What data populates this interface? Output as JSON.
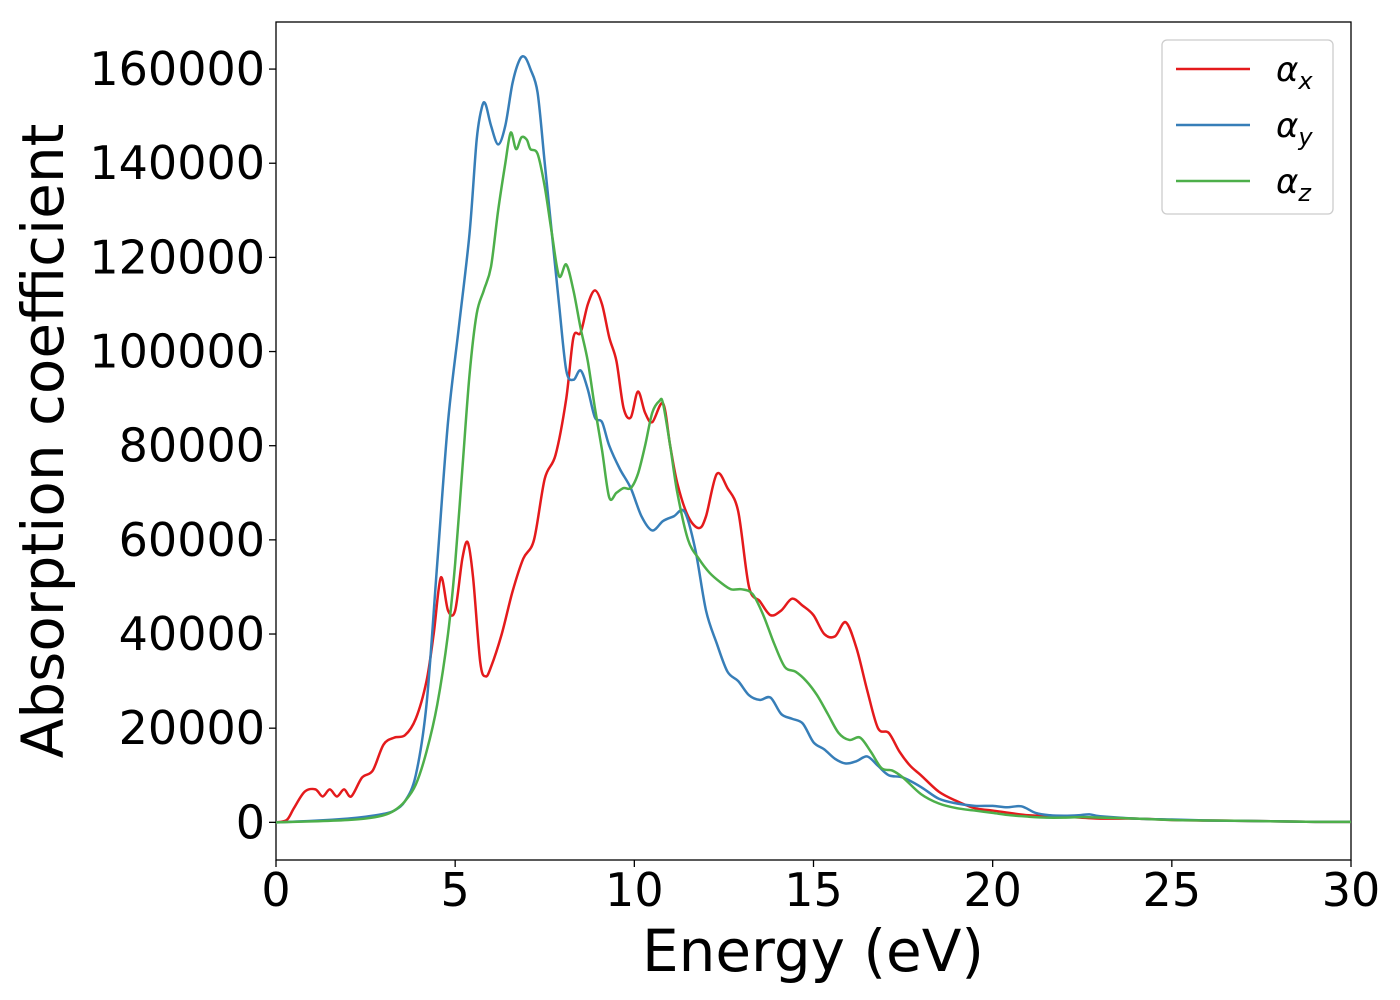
{
  "chart_data": {
    "type": "line",
    "title": "",
    "xlabel": "Energy (eV)",
    "ylabel": "Absorption coefficient",
    "xlim": [
      0,
      30
    ],
    "ylim": [
      -8000,
      170000
    ],
    "xticks": [
      0,
      5,
      10,
      15,
      20,
      25,
      30
    ],
    "yticks": [
      0,
      20000,
      40000,
      60000,
      80000,
      100000,
      120000,
      140000,
      160000
    ],
    "grid": false,
    "legend_position": "top-right",
    "series": [
      {
        "name": "α_x",
        "symbol": "α",
        "sub": "x",
        "color": "#e41a1c",
        "x": [
          0,
          0.3,
          0.5,
          0.8,
          1.1,
          1.3,
          1.5,
          1.7,
          1.9,
          2.1,
          2.4,
          2.7,
          3.0,
          3.3,
          3.6,
          3.9,
          4.2,
          4.4,
          4.6,
          4.8,
          5.0,
          5.2,
          5.35,
          5.5,
          5.7,
          5.85,
          6.0,
          6.3,
          6.6,
          6.9,
          7.2,
          7.5,
          7.8,
          8.1,
          8.3,
          8.5,
          8.7,
          8.9,
          9.1,
          9.3,
          9.5,
          9.7,
          9.9,
          10.1,
          10.3,
          10.5,
          10.8,
          11.0,
          11.2,
          11.5,
          11.8,
          12.0,
          12.3,
          12.6,
          12.9,
          13.2,
          13.5,
          13.8,
          14.1,
          14.4,
          14.7,
          15.0,
          15.3,
          15.6,
          15.9,
          16.2,
          16.5,
          16.8,
          17.1,
          17.4,
          17.7,
          18.0,
          18.5,
          19.0,
          19.5,
          20.0,
          21.0,
          22.0,
          23.0,
          24.0,
          25.0,
          26.0,
          27.0,
          28.0,
          29.0,
          30.0
        ],
        "y": [
          0,
          500,
          3000,
          6500,
          7000,
          5500,
          7000,
          5500,
          7000,
          5500,
          9500,
          11000,
          16500,
          18000,
          18500,
          22000,
          30000,
          40000,
          52000,
          45000,
          45000,
          56000,
          59500,
          52000,
          34000,
          31000,
          33000,
          40000,
          49000,
          56000,
          60000,
          73000,
          78000,
          90000,
          103000,
          104000,
          110000,
          113000,
          110000,
          103000,
          98000,
          88000,
          86000,
          91500,
          87000,
          85000,
          89000,
          80000,
          72000,
          65000,
          62500,
          65000,
          74000,
          71000,
          66000,
          50000,
          47000,
          44000,
          45000,
          47500,
          46000,
          44000,
          40000,
          39500,
          42500,
          37000,
          28000,
          20000,
          19000,
          15000,
          12000,
          10000,
          6500,
          4500,
          3000,
          2500,
          1500,
          1200,
          800,
          800,
          500,
          400,
          300,
          200,
          100,
          100
        ]
      },
      {
        "name": "α_y",
        "symbol": "α",
        "sub": "y",
        "color": "#377eb8",
        "x": [
          0,
          1.0,
          2.0,
          2.5,
          3.0,
          3.3,
          3.6,
          3.9,
          4.2,
          4.5,
          4.8,
          5.1,
          5.4,
          5.6,
          5.75,
          5.85,
          6.0,
          6.2,
          6.4,
          6.6,
          6.8,
          6.95,
          7.1,
          7.3,
          7.5,
          7.7,
          7.9,
          8.1,
          8.3,
          8.5,
          8.7,
          8.9,
          9.1,
          9.3,
          9.6,
          9.9,
          10.2,
          10.5,
          10.8,
          11.1,
          11.4,
          11.7,
          12.0,
          12.3,
          12.6,
          12.9,
          13.2,
          13.5,
          13.8,
          14.1,
          14.4,
          14.7,
          15.0,
          15.3,
          15.6,
          15.9,
          16.2,
          16.5,
          16.8,
          17.1,
          17.5,
          18.0,
          18.5,
          19.0,
          19.5,
          20.0,
          20.4,
          20.8,
          21.2,
          21.6,
          22.0,
          22.4,
          22.7,
          23.0,
          24.0,
          25.0,
          26.0,
          27.0,
          28.0,
          29.0,
          30.0
        ],
        "y": [
          0,
          300,
          800,
          1200,
          1800,
          2500,
          4500,
          10000,
          25000,
          55000,
          85000,
          105000,
          125000,
          145000,
          152000,
          152500,
          148000,
          144000,
          148000,
          157000,
          162000,
          162500,
          160000,
          155000,
          140000,
          125000,
          110000,
          96000,
          94000,
          96000,
          92000,
          86000,
          85000,
          80000,
          75000,
          71000,
          65000,
          62000,
          64000,
          65000,
          66000,
          58000,
          45000,
          38000,
          32000,
          30000,
          27000,
          26000,
          26500,
          23000,
          22000,
          21000,
          17000,
          15500,
          13500,
          12500,
          13000,
          14000,
          12000,
          10000,
          9500,
          7500,
          5000,
          4000,
          3500,
          3500,
          3200,
          3400,
          2000,
          1500,
          1400,
          1500,
          1700,
          1300,
          800,
          600,
          400,
          300,
          200,
          100,
          100
        ]
      },
      {
        "name": "α_z",
        "symbol": "α",
        "sub": "z",
        "color": "#4daf4a",
        "x": [
          0,
          1.0,
          2.0,
          2.5,
          3.0,
          3.3,
          3.6,
          3.9,
          4.2,
          4.5,
          4.8,
          5.0,
          5.2,
          5.4,
          5.6,
          5.8,
          6.0,
          6.2,
          6.4,
          6.55,
          6.7,
          6.85,
          7.0,
          7.1,
          7.3,
          7.5,
          7.7,
          7.9,
          8.1,
          8.3,
          8.5,
          8.7,
          8.9,
          9.1,
          9.3,
          9.5,
          9.7,
          9.9,
          10.1,
          10.3,
          10.5,
          10.7,
          10.8,
          11.0,
          11.2,
          11.5,
          11.8,
          12.1,
          12.4,
          12.7,
          13.0,
          13.3,
          13.6,
          13.9,
          14.2,
          14.5,
          14.8,
          15.1,
          15.4,
          15.7,
          16.0,
          16.3,
          16.6,
          16.9,
          17.2,
          17.5,
          18.0,
          18.5,
          19.0,
          19.5,
          20.0,
          20.5,
          21.0,
          21.5,
          22.0,
          22.5,
          23.0,
          24.0,
          25.0,
          26.0,
          27.0,
          28.0,
          29.0,
          30.0
        ],
        "y": [
          0,
          200,
          500,
          800,
          1500,
          2500,
          4500,
          8000,
          15000,
          25000,
          40000,
          55000,
          75000,
          95000,
          108000,
          113000,
          118000,
          130000,
          140000,
          146500,
          143000,
          145500,
          145000,
          143000,
          142000,
          135000,
          125000,
          116000,
          118500,
          113000,
          105000,
          98000,
          88000,
          79000,
          69000,
          70000,
          71000,
          71000,
          74000,
          80000,
          87000,
          89500,
          89000,
          80000,
          70000,
          60000,
          56000,
          53000,
          51000,
          49500,
          49500,
          48500,
          44000,
          38000,
          33000,
          32000,
          30000,
          27000,
          23000,
          19000,
          17500,
          18000,
          15000,
          11500,
          11000,
          9500,
          6000,
          4000,
          3000,
          2500,
          2000,
          1500,
          1200,
          1000,
          1000,
          1100,
          1000,
          800,
          500,
          400,
          300,
          200,
          100,
          100
        ]
      }
    ]
  }
}
